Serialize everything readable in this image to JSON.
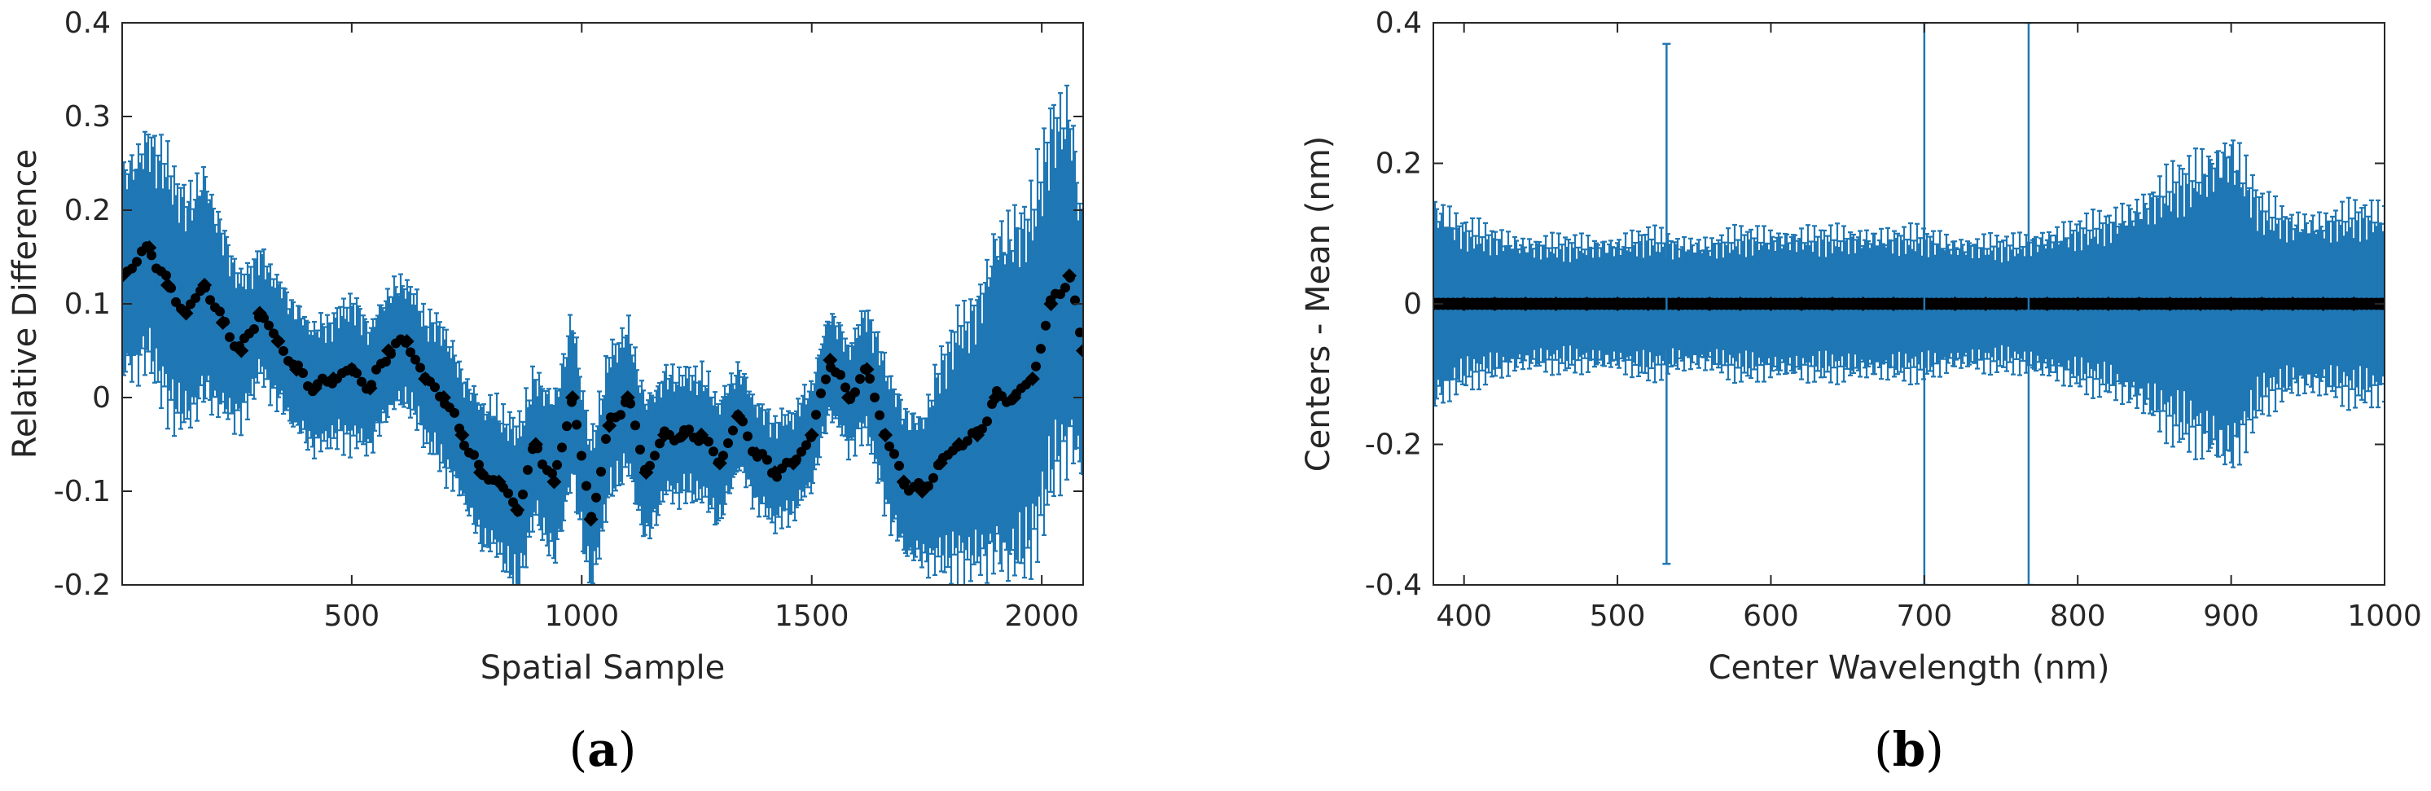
{
  "colors": {
    "errorbar": "#1f77b4",
    "marker": "#000000",
    "axis": "#262626"
  },
  "chart_data": [
    {
      "type": "scatter",
      "caption_letter": "a",
      "xlabel": "Spatial Sample",
      "ylabel": "Relative Difference",
      "xlim": [
        1,
        2090
      ],
      "ylim": [
        -0.2,
        0.4
      ],
      "xticks": [
        500,
        1000,
        1500,
        2000
      ],
      "yticks": [
        -0.2,
        -0.1,
        0,
        0.1,
        0.2,
        0.3,
        0.4
      ],
      "ytick_labels": [
        "-0.2",
        "-0.1",
        "0",
        "0.1",
        "0.2",
        "0.3",
        "0.4"
      ],
      "grid": false,
      "series": [
        {
          "style": "markers with error bars",
          "x": [
            1,
            60,
            100,
            140,
            180,
            220,
            260,
            300,
            340,
            380,
            420,
            460,
            500,
            540,
            580,
            620,
            660,
            700,
            740,
            780,
            820,
            860,
            900,
            940,
            980,
            1020,
            1060,
            1100,
            1140,
            1180,
            1220,
            1260,
            1300,
            1340,
            1380,
            1420,
            1460,
            1500,
            1540,
            1580,
            1620,
            1660,
            1700,
            1740,
            1780,
            1820,
            1860,
            1900,
            1940,
            1980,
            2020,
            2060,
            2090
          ],
          "y": [
            0.13,
            0.16,
            0.12,
            0.09,
            0.12,
            0.08,
            0.05,
            0.09,
            0.06,
            0.03,
            0.01,
            0.02,
            0.03,
            0.01,
            0.05,
            0.06,
            0.02,
            0.0,
            -0.04,
            -0.08,
            -0.09,
            -0.12,
            -0.05,
            -0.09,
            0.0,
            -0.13,
            -0.03,
            0.0,
            -0.08,
            -0.04,
            -0.04,
            -0.04,
            -0.07,
            -0.02,
            -0.06,
            -0.08,
            -0.07,
            -0.04,
            0.04,
            0.0,
            0.03,
            -0.04,
            -0.09,
            -0.1,
            -0.07,
            -0.05,
            -0.04,
            0.0,
            0.0,
            0.02,
            0.1,
            0.13,
            0.05
          ],
          "err": [
            0.1,
            0.11,
            0.12,
            0.11,
            0.11,
            0.09,
            0.07,
            0.06,
            0.06,
            0.06,
            0.06,
            0.06,
            0.07,
            0.06,
            0.06,
            0.06,
            0.06,
            0.07,
            0.06,
            0.07,
            0.07,
            0.08,
            0.07,
            0.08,
            0.08,
            0.07,
            0.07,
            0.07,
            0.07,
            0.06,
            0.06,
            0.06,
            0.06,
            0.05,
            0.05,
            0.05,
            0.05,
            0.05,
            0.05,
            0.05,
            0.06,
            0.07,
            0.07,
            0.07,
            0.1,
            0.12,
            0.13,
            0.16,
            0.17,
            0.17,
            0.18,
            0.17,
            0.12
          ]
        }
      ]
    },
    {
      "type": "scatter",
      "caption_letter": "b",
      "xlabel": "Center Wavelength (nm)",
      "ylabel": "Centers - Mean (nm)",
      "xlim": [
        380,
        1000
      ],
      "ylim": [
        -0.4,
        0.4
      ],
      "xticks": [
        400,
        500,
        600,
        700,
        800,
        900,
        1000
      ],
      "yticks": [
        -0.4,
        -0.2,
        0,
        0.2,
        0.4
      ],
      "ytick_labels": [
        "-0.4",
        "-0.2",
        "0",
        "0.2",
        "0.4"
      ],
      "grid": false,
      "series": [
        {
          "style": "markers with error bars",
          "x": [
            380,
            400,
            420,
            440,
            460,
            480,
            500,
            520,
            540,
            560,
            580,
            600,
            620,
            640,
            660,
            680,
            700,
            720,
            740,
            760,
            780,
            800,
            820,
            840,
            860,
            880,
            900,
            920,
            940,
            960,
            980,
            1000
          ],
          "y": [
            0,
            0,
            0,
            0,
            0,
            0,
            0,
            0,
            0,
            0,
            0,
            0,
            0,
            0,
            0,
            0,
            0,
            0,
            0,
            0,
            0,
            0,
            0,
            0,
            0,
            0,
            0,
            0,
            0,
            0,
            0,
            0
          ],
          "err": [
            0.13,
            0.1,
            0.09,
            0.08,
            0.08,
            0.08,
            0.08,
            0.09,
            0.08,
            0.08,
            0.09,
            0.09,
            0.09,
            0.09,
            0.09,
            0.09,
            0.09,
            0.08,
            0.08,
            0.08,
            0.09,
            0.1,
            0.11,
            0.13,
            0.16,
            0.18,
            0.21,
            0.13,
            0.11,
            0.11,
            0.12,
            0.12
          ]
        }
      ],
      "spikes": [
        {
          "x": 532,
          "err": 0.37
        },
        {
          "x": 700,
          "err": 0.4
        },
        {
          "x": 768,
          "err": 0.4
        }
      ]
    }
  ]
}
